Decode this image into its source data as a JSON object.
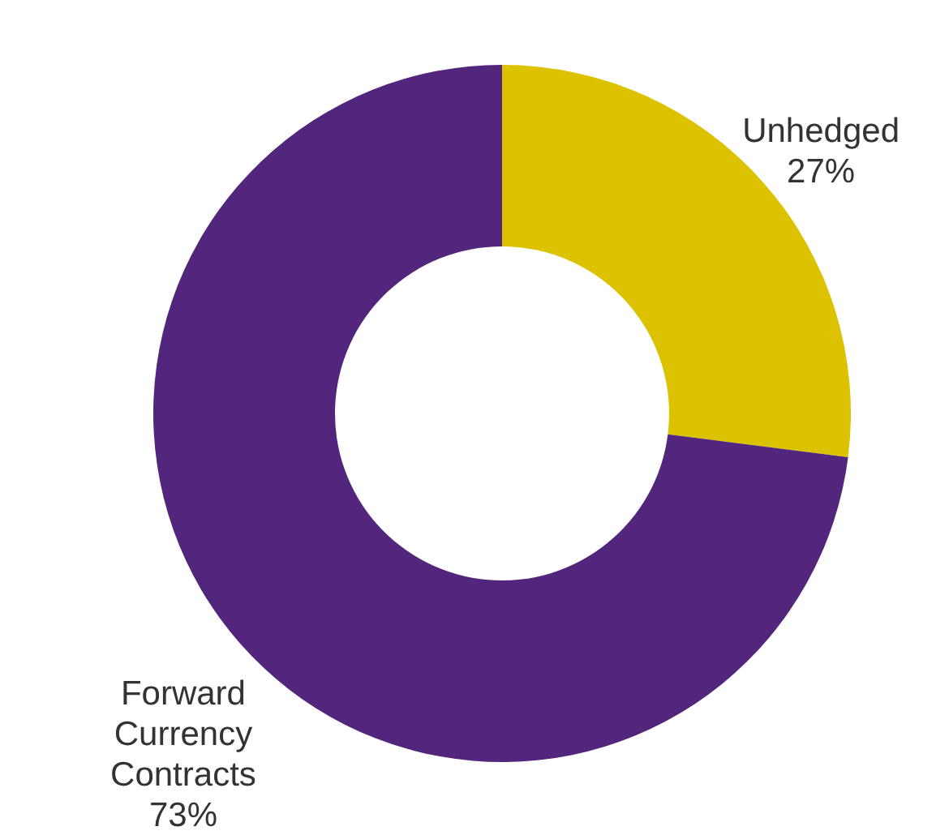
{
  "chart_data": {
    "type": "donut",
    "categories": [
      "Unhedged",
      "Forward Currency Contracts"
    ],
    "values": [
      27,
      73
    ],
    "colors": [
      "#dcc200",
      "#52267d"
    ],
    "value_labels": [
      "27%",
      "73%"
    ]
  }
}
